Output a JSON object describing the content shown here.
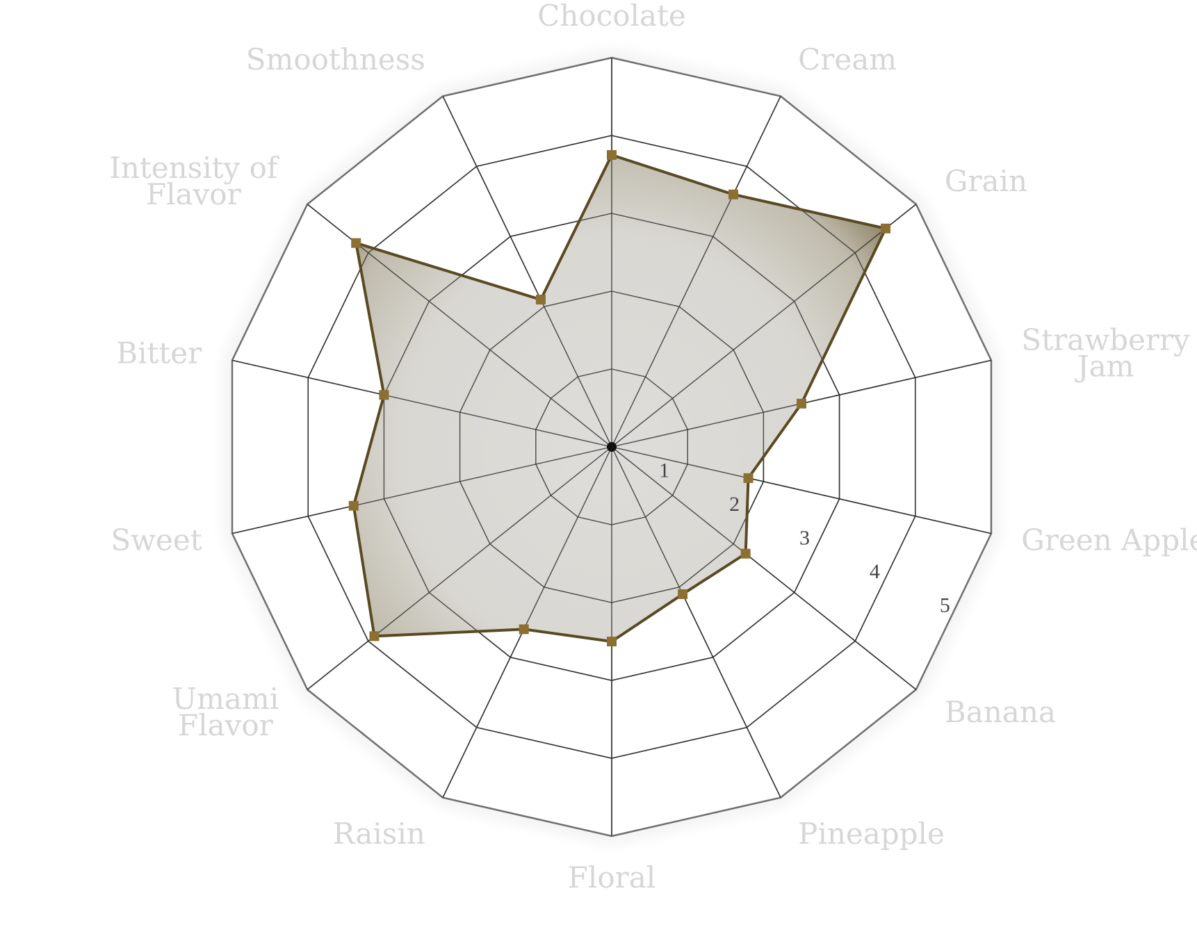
{
  "chart_data": {
    "type": "radar",
    "title": "",
    "axes": [
      "Chocolate",
      "Cream",
      "Grain",
      "Strawberry\nJam",
      "Green Apple",
      "Banana",
      "Pineapple",
      "Floral",
      "Raisin",
      "Umami\nFlavor",
      "Sweet",
      "Bitter",
      "Intensity of\nFlavor",
      "Smoothness"
    ],
    "series": [
      {
        "values": [
          3.75,
          3.6,
          4.5,
          2.5,
          1.8,
          2.2,
          2.1,
          2.5,
          2.6,
          3.9,
          3.4,
          3.0,
          4.2,
          2.1
        ]
      }
    ],
    "rlim": [
      0,
      5
    ],
    "ticks": [
      "1",
      "2",
      "3",
      "4",
      "5"
    ],
    "grid": true,
    "colors": {
      "label": "#d6d6d6",
      "grid": "#333333",
      "outer_grid": "#6e6e6e",
      "series_stroke": "#5a4a22",
      "marker": "#8c7032",
      "fill_center": "#dcdbd7",
      "fill_edge": "#857a5c"
    }
  }
}
